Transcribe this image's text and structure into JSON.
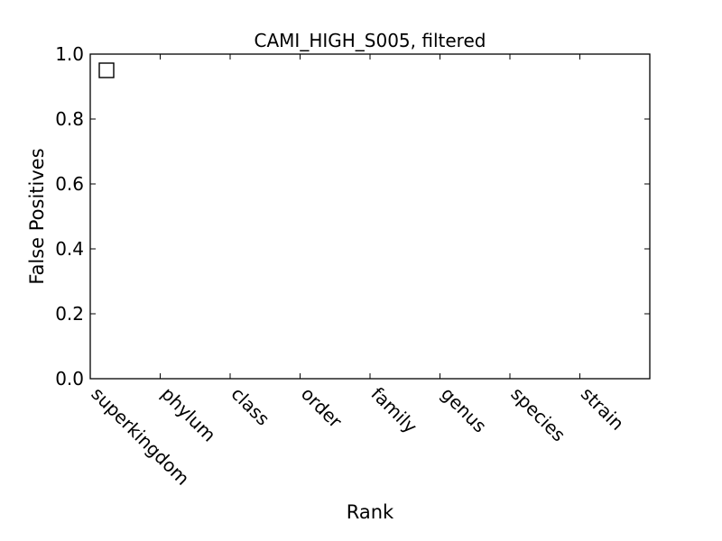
{
  "chart_data": {
    "type": "scatter",
    "title": "CAMI_HIGH_S005, filtered",
    "xlabel": "Rank",
    "ylabel": "False Positives",
    "categories": [
      "superkingdom",
      "phylum",
      "class",
      "order",
      "family",
      "genus",
      "species",
      "strain"
    ],
    "ylim": [
      0.0,
      1.0
    ],
    "yticks": [
      "0.0",
      "0.2",
      "0.4",
      "0.6",
      "0.8",
      "1.0"
    ],
    "legend": {
      "placement": "top-left",
      "entries": [
        {
          "marker": "square",
          "label": ""
        }
      ]
    },
    "series": [],
    "grid": false
  }
}
